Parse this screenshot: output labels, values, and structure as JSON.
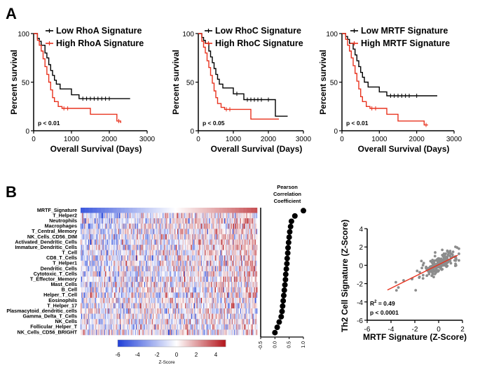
{
  "panel_labels": {
    "a": "A",
    "b": "B"
  },
  "colors": {
    "low": "#000000",
    "high": "#e8321e",
    "heat_neg": "#1f3fd8",
    "heat_pos": "#b3141a",
    "dots": "#000000",
    "scatter_pts": "#8c8c8c",
    "fit_line": "#e8321e"
  },
  "survival": {
    "ylabel": "Percent survival",
    "xlabel": "Overall Survival (Days)",
    "xticks": [
      "0",
      "1000",
      "2000",
      "3000"
    ],
    "yticks": [
      "0",
      "50",
      "100"
    ]
  },
  "chart_data": [
    {
      "type": "line",
      "title": "",
      "xlabel": "Overall Survival (Days)",
      "ylabel": "Percent survival",
      "xlim": [
        0,
        3000
      ],
      "ylim": [
        0,
        100
      ],
      "pvalue": "p < 0.01",
      "series": [
        {
          "name": "Low RhoA Signature",
          "color": "#000000",
          "x": [
            0,
            100,
            150,
            200,
            300,
            350,
            400,
            450,
            500,
            550,
            600,
            700,
            900,
            1000,
            1200,
            2000,
            2550
          ],
          "y": [
            100,
            95,
            92,
            88,
            80,
            75,
            68,
            62,
            57,
            52,
            48,
            43,
            43,
            37,
            33,
            33,
            33
          ],
          "censor_x": [
            1300,
            1400,
            1500,
            1600,
            1700,
            1800,
            1900,
            2000
          ]
        },
        {
          "name": "High RhoA Signature",
          "color": "#e8321e",
          "x": [
            0,
            100,
            150,
            200,
            250,
            300,
            350,
            400,
            450,
            500,
            550,
            650,
            750,
            1100,
            1500,
            2200,
            2300
          ],
          "y": [
            100,
            93,
            88,
            82,
            74,
            66,
            58,
            50,
            42,
            34,
            30,
            25,
            23,
            23,
            17,
            10,
            8
          ],
          "censor_x": [
            800,
            900,
            2250
          ]
        }
      ]
    },
    {
      "type": "line",
      "title": "",
      "xlabel": "Overall Survival (Days)",
      "ylabel": "Percent survival",
      "xlim": [
        0,
        3000
      ],
      "ylim": [
        0,
        100
      ],
      "pvalue": "p < 0.05",
      "series": [
        {
          "name": "Low RhoC Signature",
          "color": "#000000",
          "x": [
            0,
            100,
            150,
            200,
            300,
            350,
            400,
            450,
            500,
            550,
            600,
            700,
            900,
            1000,
            1300,
            2200,
            2550
          ],
          "y": [
            100,
            96,
            93,
            90,
            82,
            76,
            70,
            64,
            58,
            53,
            48,
            44,
            44,
            38,
            32,
            15,
            15
          ],
          "censor_x": [
            1100,
            1400,
            1500,
            1600,
            1700,
            1800,
            2000
          ]
        },
        {
          "name": "High RhoC Signature",
          "color": "#e8321e",
          "x": [
            0,
            100,
            150,
            200,
            250,
            300,
            350,
            400,
            450,
            500,
            550,
            650,
            750,
            1500,
            2200,
            2300
          ],
          "y": [
            100,
            92,
            86,
            80,
            72,
            65,
            57,
            49,
            41,
            34,
            28,
            24,
            22,
            12,
            12,
            12
          ],
          "censor_x": [
            800,
            900
          ]
        }
      ]
    },
    {
      "type": "line",
      "title": "",
      "xlabel": "Overall Survival (Days)",
      "ylabel": "Percent survival",
      "xlim": [
        0,
        3000
      ],
      "ylim": [
        0,
        100
      ],
      "pvalue": "p < 0.01",
      "series": [
        {
          "name": "Low MRTF Signature",
          "color": "#000000",
          "x": [
            0,
            100,
            150,
            200,
            300,
            350,
            400,
            450,
            500,
            550,
            600,
            700,
            900,
            1000,
            1200,
            2000,
            2550
          ],
          "y": [
            100,
            97,
            94,
            90,
            84,
            78,
            72,
            66,
            60,
            55,
            50,
            45,
            45,
            40,
            36,
            36,
            36
          ],
          "censor_x": [
            1300,
            1400,
            1500,
            1600,
            1700,
            1800,
            2000
          ]
        },
        {
          "name": "High MRTF Signature",
          "color": "#e8321e",
          "x": [
            0,
            100,
            150,
            200,
            250,
            300,
            350,
            400,
            450,
            500,
            550,
            650,
            750,
            1200,
            1500,
            2200,
            2300
          ],
          "y": [
            100,
            94,
            88,
            82,
            75,
            67,
            59,
            51,
            43,
            35,
            30,
            25,
            23,
            17,
            10,
            6,
            6
          ],
          "censor_x": [
            800,
            900,
            2250
          ]
        }
      ]
    },
    {
      "type": "heatmap",
      "rows": [
        "MRTF_Signature",
        "T_Helper2",
        "Neutrophils",
        "Macrophages",
        "T_Central_Memory",
        "NK_Cells_CD56_DIM",
        "Activated_Dendritic_Cells",
        "Immature_Dendritic_Cells",
        "T_Cell",
        "CD8_T_Cells",
        "T_Helper1",
        "Dendritic_Cells",
        "Cytotoxic_T_Cells",
        "T_Effector_Memory",
        "Mast_Cells",
        "B_Cell",
        "Helper_T_Cell",
        "Eosinophils",
        "T_Helper_17",
        "Plasmacytoid_dendritic_cells",
        "Gamma_Delta_T_Cells",
        "NK_Cells",
        "Follicular_Helper_T",
        "NK_Cells_CD56_BRIGHT"
      ],
      "colorbar_ticks": [
        "-6",
        "-4",
        "-2",
        "0",
        "2",
        "4"
      ],
      "colorbar_range": [
        -6,
        5
      ],
      "colorbar_label": "Z-Score"
    },
    {
      "type": "scatter",
      "title": "Pearson Correlation Coefficient",
      "categories": [
        "MRTF_Signature",
        "T_Helper2",
        "Neutrophils",
        "Macrophages",
        "T_Central_Memory",
        "NK_Cells_CD56_DIM",
        "Activated_Dendritic_Cells",
        "Immature_Dendritic_Cells",
        "T_Cell",
        "CD8_T_Cells",
        "T_Helper1",
        "Dendritic_Cells",
        "Cytotoxic_T_Cells",
        "T_Effector_Memory",
        "Mast_Cells",
        "B_Cell",
        "Helper_T_Cell",
        "Eosinophils",
        "T_Helper_17",
        "Plasmacytoid_dendritic_cells",
        "Gamma_Delta_T_Cells",
        "NK_Cells",
        "Follicular_Helper_T",
        "NK_Cells_CD56_BRIGHT"
      ],
      "values": [
        1.0,
        0.7,
        0.58,
        0.55,
        0.52,
        0.5,
        0.48,
        0.46,
        0.45,
        0.43,
        0.42,
        0.4,
        0.38,
        0.37,
        0.35,
        0.33,
        0.31,
        0.29,
        0.27,
        0.25,
        0.22,
        0.15,
        0.08,
        0.0
      ],
      "xlim": [
        -0.5,
        1.0
      ],
      "xticks": [
        "-0.5",
        "0.0",
        "0.5",
        "1.0"
      ]
    },
    {
      "type": "scatter",
      "xlabel": "MRTF Signature  (Z-Score)",
      "ylabel": "Th2 Cell Signature  (Z-Score)",
      "xlim": [
        -6,
        2
      ],
      "ylim": [
        -6,
        4
      ],
      "xticks": [
        "-6",
        "-4",
        "-2",
        "0",
        "2"
      ],
      "yticks": [
        "-6",
        "-4",
        "-2",
        "0",
        "2",
        "4"
      ],
      "r2_label": "R",
      "r2_sup": "2",
      "r2_value": "= 0.49",
      "pvalue": "p < 0.0001",
      "fit_line": {
        "x": [
          -4.3,
          1.6
        ],
        "y": [
          -2.7,
          1.1
        ]
      },
      "points_seed": 7,
      "n_points": 220
    }
  ]
}
